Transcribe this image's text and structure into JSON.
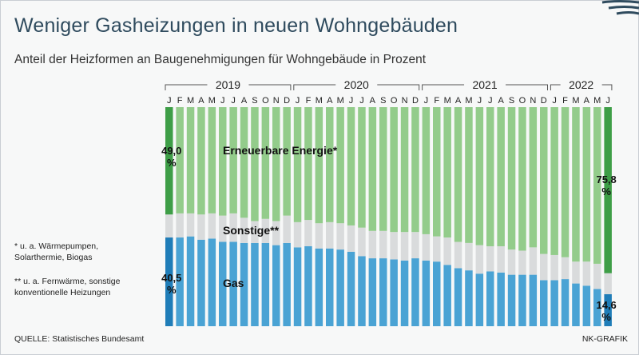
{
  "title": "Weniger Gasheizungen in neuen Wohngebäuden",
  "subtitle": "Anteil der Heizformen an Baugenehmigungen für Wohngebäude in Prozent",
  "notes": [
    "* u. a. Wärmepumpen, Solarthermie, Biogas",
    "** u. a. Fernwärme, sonstige konventionelle Heizungen"
  ],
  "source": "QUELLE: Statistisches Bundesamt",
  "credit": "NK-GRAFIK",
  "colors": {
    "gas": "#4aa3d4",
    "gas_highlight": "#1f7db8",
    "sonstige": "#d9dbdc",
    "erneuerbare": "#93cc8b",
    "erneuerbare_highlight": "#3e9e47"
  },
  "chart_data": {
    "type": "bar",
    "stacked": true,
    "ylim": [
      0,
      100
    ],
    "years": [
      {
        "label": "2019",
        "months": 12
      },
      {
        "label": "2020",
        "months": 12
      },
      {
        "label": "2021",
        "months": 12
      },
      {
        "label": "2022",
        "months": 6
      }
    ],
    "categories": [
      "J",
      "F",
      "M",
      "A",
      "M",
      "J",
      "J",
      "A",
      "S",
      "O",
      "N",
      "D",
      "J",
      "F",
      "M",
      "A",
      "M",
      "J",
      "J",
      "A",
      "S",
      "O",
      "N",
      "D",
      "J",
      "F",
      "M",
      "A",
      "M",
      "J",
      "J",
      "A",
      "S",
      "O",
      "N",
      "D",
      "J",
      "F",
      "M",
      "A",
      "M",
      "J"
    ],
    "series": [
      {
        "name": "Gas",
        "key": "gas",
        "values": [
          40.5,
          40.5,
          41.0,
          39.5,
          40.0,
          38.5,
          38.5,
          38.0,
          38.0,
          38.0,
          37.0,
          38.0,
          36.0,
          36.5,
          35.5,
          35.5,
          35.0,
          34.0,
          32.0,
          31.0,
          31.0,
          30.5,
          30.0,
          31.0,
          30.0,
          29.5,
          28.0,
          26.5,
          25.5,
          24.0,
          25.0,
          24.5,
          23.5,
          23.5,
          23.5,
          21.0,
          21.0,
          21.5,
          19.5,
          18.5,
          17.0,
          14.6
        ]
      },
      {
        "name": "Sonstige**",
        "key": "sonstige",
        "values": [
          10.5,
          11.0,
          10.5,
          11.5,
          11.5,
          12.0,
          13.0,
          11.5,
          10.0,
          11.0,
          11.0,
          12.5,
          11.5,
          12.0,
          11.5,
          12.0,
          12.0,
          12.0,
          13.0,
          12.5,
          12.5,
          12.5,
          13.0,
          12.0,
          12.0,
          11.5,
          12.5,
          12.0,
          12.5,
          13.0,
          11.5,
          12.0,
          11.5,
          11.0,
          12.5,
          12.0,
          11.5,
          10.0,
          10.0,
          11.0,
          11.5,
          9.6
        ]
      },
      {
        "name": "Erneuerbare Energie*",
        "key": "erneuerbare",
        "values": [
          49.0,
          48.5,
          48.5,
          49.0,
          48.5,
          49.5,
          48.5,
          50.5,
          52.0,
          51.0,
          52.0,
          49.5,
          52.5,
          51.5,
          53.0,
          52.5,
          53.0,
          54.0,
          55.0,
          56.5,
          56.5,
          57.0,
          57.0,
          57.0,
          58.0,
          59.0,
          59.5,
          61.5,
          62.0,
          63.0,
          63.5,
          63.5,
          65.0,
          65.5,
          64.0,
          67.0,
          67.5,
          68.5,
          70.5,
          70.5,
          71.5,
          75.8
        ]
      }
    ],
    "series_labels": {
      "gas": "Gas",
      "sonstige": "Sonstige**",
      "erneuerbare": "Erneuerbare Energie*"
    },
    "value_labels": {
      "first_erneuerbare": "49,0 %",
      "first_gas": "40,5 %",
      "last_erneuerbare": "75,8 %",
      "last_gas": "14,6 %"
    }
  }
}
